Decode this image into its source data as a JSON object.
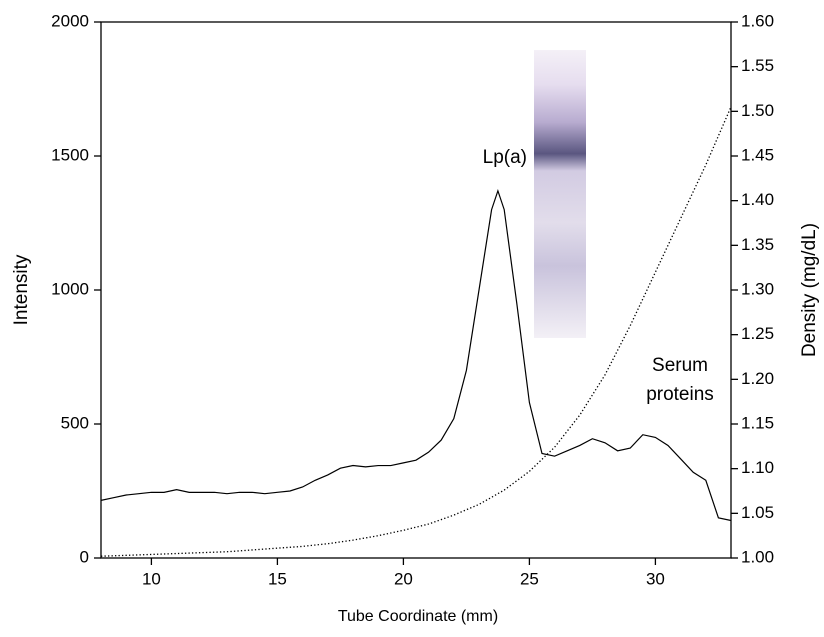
{
  "chart_data": {
    "type": "line",
    "xlabel": "Tube Coordinate (mm)",
    "ylabel": "Intensity",
    "y2label": "Density (mg/dL)",
    "xlim": [
      8,
      33
    ],
    "xticks": [
      10,
      15,
      20,
      25,
      30
    ],
    "ylim": [
      0,
      2000
    ],
    "yticks": [
      0,
      500,
      1000,
      1500,
      2000
    ],
    "y2lim": [
      1.0,
      1.6
    ],
    "y2ticks": [
      {
        "value": 1.0,
        "label": "1.00"
      },
      1.05,
      {
        "value": 1.1,
        "label": "1.10"
      },
      1.15,
      {
        "value": 1.2,
        "label": "1.20"
      },
      1.25,
      {
        "value": 1.3,
        "label": "1.30"
      },
      1.35,
      {
        "value": 1.4,
        "label": "1.40"
      },
      1.45,
      {
        "value": 1.5,
        "label": "1.50"
      },
      1.55,
      {
        "value": 1.6,
        "label": "1.60"
      }
    ],
    "series": [
      {
        "color": "#000000",
        "style": "solid",
        "x": [
          8,
          8.5,
          9,
          9.5,
          10,
          10.5,
          11,
          11.5,
          12,
          12.5,
          13,
          13.5,
          14,
          14.5,
          15,
          15.5,
          16,
          16.5,
          17,
          17.5,
          18,
          18.5,
          19,
          19.5,
          20,
          20.5,
          21,
          21.5,
          22,
          22.5,
          23,
          23.5,
          23.75,
          24,
          24.5,
          25,
          25.5,
          26,
          26.5,
          27,
          27.5,
          28,
          28.5,
          29,
          29.5,
          30,
          30.5,
          31,
          31.5,
          32,
          32.5,
          33
        ],
        "values": [
          215,
          225,
          235,
          240,
          245,
          245,
          255,
          245,
          245,
          245,
          240,
          245,
          245,
          240,
          245,
          250,
          265,
          290,
          310,
          335,
          345,
          340,
          345,
          345,
          355,
          365,
          395,
          440,
          520,
          700,
          1000,
          1300,
          1370,
          1300,
          950,
          580,
          390,
          380,
          400,
          420,
          445,
          430,
          400,
          410,
          460,
          450,
          420,
          370,
          320,
          290,
          150,
          140
        ]
      },
      {
        "color": "#000000",
        "style": "dotted",
        "axis": "y2",
        "x": [
          8,
          9,
          10,
          11,
          12,
          13,
          14,
          15,
          16,
          17,
          18,
          19,
          20,
          21,
          22,
          23,
          24,
          25,
          26,
          27,
          28,
          29,
          30,
          31,
          32,
          33
        ],
        "values": [
          1.002,
          1.003,
          1.004,
          1.005,
          1.006,
          1.007,
          1.009,
          1.011,
          1.013,
          1.016,
          1.02,
          1.025,
          1.031,
          1.038,
          1.048,
          1.06,
          1.076,
          1.097,
          1.124,
          1.16,
          1.205,
          1.26,
          1.32,
          1.38,
          1.44,
          1.505
        ]
      }
    ],
    "annotations": [
      {
        "text": "Lp(a)"
      },
      {
        "lines": [
          "Serum",
          "proteins"
        ]
      }
    ]
  }
}
